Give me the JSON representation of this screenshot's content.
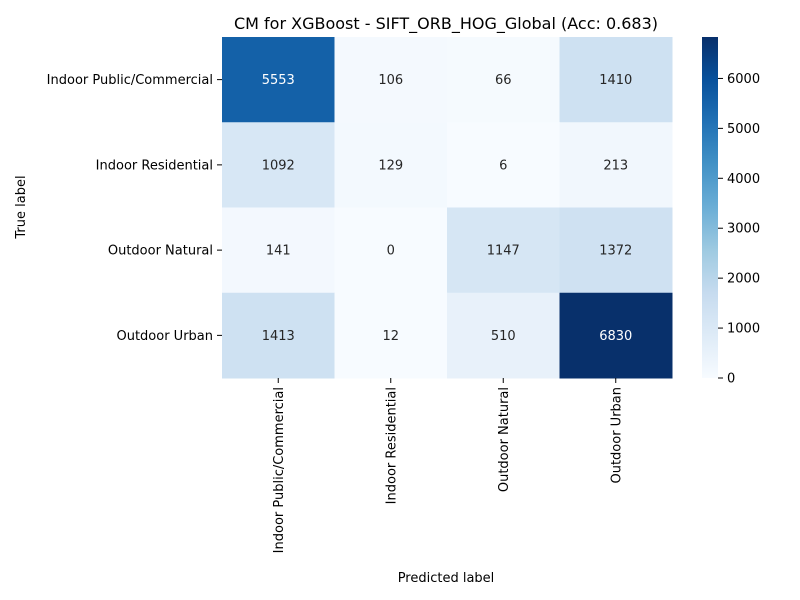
{
  "chart_data": {
    "type": "heatmap",
    "title": "CM for XGBoost - SIFT_ORB_HOG_Global (Acc: 0.683)",
    "xlabel": "Predicted label",
    "ylabel": "True label",
    "row_labels": [
      "Indoor Public/Commercial",
      "Indoor Residential",
      "Outdoor Natural",
      "Outdoor Urban"
    ],
    "col_labels": [
      "Indoor Public/Commercial",
      "Indoor Residential",
      "Outdoor Natural",
      "Outdoor Urban"
    ],
    "values": [
      [
        5553,
        106,
        66,
        1410
      ],
      [
        1092,
        129,
        6,
        213
      ],
      [
        141,
        0,
        1147,
        1372
      ],
      [
        1413,
        12,
        510,
        6830
      ]
    ],
    "colormap": "Blues",
    "vmin": 0,
    "vmax": 6830,
    "colorbar_ticks": [
      0,
      1000,
      2000,
      3000,
      4000,
      5000,
      6000
    ],
    "grid": false
  }
}
